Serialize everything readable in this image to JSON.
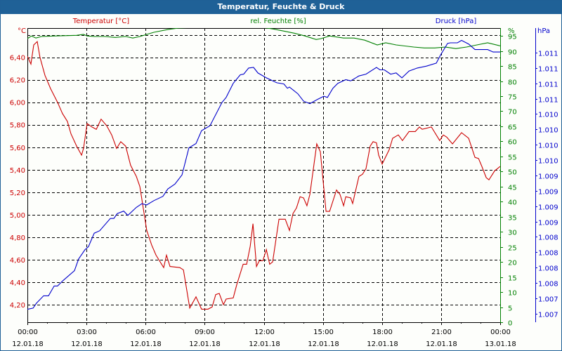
{
  "window": {
    "title": "Temperatur, Feuchte & Druck"
  },
  "chart_data": {
    "type": "line",
    "title": "Temperatur, Feuchte & Druck",
    "colors": {
      "temperature": "#cc0000",
      "humidity": "#008000",
      "pressure": "#0000cc",
      "grid": "#000000"
    },
    "x_axis": {
      "unit": "hours since 12.01.18 00:00",
      "range": [
        0,
        24
      ],
      "ticks": [
        {
          "h": 0,
          "time": "00:00",
          "date": "12.01.18"
        },
        {
          "h": 3,
          "time": "03:00",
          "date": "12.01.18"
        },
        {
          "h": 6,
          "time": "06:00",
          "date": "12.01.18"
        },
        {
          "h": 9,
          "time": "09:00",
          "date": "12.01.18"
        },
        {
          "h": 12,
          "time": "12:00",
          "date": "12.01.18"
        },
        {
          "h": 15,
          "time": "15:00",
          "date": "12.01.18"
        },
        {
          "h": 18,
          "time": "18:00",
          "date": "12.01.18"
        },
        {
          "h": 21,
          "time": "21:00",
          "date": "12.01.18"
        },
        {
          "h": 24,
          "time": "00:00",
          "date": "13.01.18"
        }
      ]
    },
    "y_axes": {
      "temperature": {
        "legend": "Temperatur [°C]",
        "unit": "°C",
        "range": [
          4.044,
          6.66
        ],
        "ticks": [
          {
            "v": 4.2,
            "label": "4,20"
          },
          {
            "v": 4.4,
            "label": "4,40"
          },
          {
            "v": 4.6,
            "label": "4,60"
          },
          {
            "v": 4.8,
            "label": "4,80"
          },
          {
            "v": 5.0,
            "label": "5,00"
          },
          {
            "v": 5.2,
            "label": "5,20"
          },
          {
            "v": 5.4,
            "label": "5,40"
          },
          {
            "v": 5.6,
            "label": "5,60"
          },
          {
            "v": 5.8,
            "label": "5,80"
          },
          {
            "v": 6.0,
            "label": "6,00"
          },
          {
            "v": 6.2,
            "label": "6,20"
          },
          {
            "v": 6.4,
            "label": "6,40"
          }
        ],
        "gridlines": [
          4.2,
          4.4,
          4.6,
          4.8,
          5.0,
          5.2,
          5.4,
          5.6,
          5.8,
          6.0,
          6.2,
          6.4,
          6.6
        ]
      },
      "humidity": {
        "legend": "rel. Feuchte [%]",
        "unit": "%",
        "range": [
          0,
          97.6
        ],
        "ticks": [
          {
            "v": 0,
            "label": "0"
          },
          {
            "v": 5,
            "label": "5"
          },
          {
            "v": 10,
            "label": "10"
          },
          {
            "v": 15,
            "label": "15"
          },
          {
            "v": 20,
            "label": "20"
          },
          {
            "v": 25,
            "label": "25"
          },
          {
            "v": 30,
            "label": "30"
          },
          {
            "v": 35,
            "label": "35"
          },
          {
            "v": 40,
            "label": "40"
          },
          {
            "v": 45,
            "label": "45"
          },
          {
            "v": 50,
            "label": "50"
          },
          {
            "v": 55,
            "label": "55"
          },
          {
            "v": 60,
            "label": "60"
          },
          {
            "v": 65,
            "label": "65"
          },
          {
            "v": 70,
            "label": "70"
          },
          {
            "v": 75,
            "label": "75"
          },
          {
            "v": 80,
            "label": "80"
          },
          {
            "v": 85,
            "label": "85"
          },
          {
            "v": 90,
            "label": "90"
          },
          {
            "v": 95,
            "label": "95"
          }
        ]
      },
      "pressure": {
        "legend": "Druck [hPa]",
        "unit": "hPa",
        "range": [
          1006.86,
          1011.65
        ],
        "ticks": [
          {
            "v": 1007.0,
            "label": "1.007"
          },
          {
            "v": 1007.25,
            "label": "1.007"
          },
          {
            "v": 1007.5,
            "label": "1.008"
          },
          {
            "v": 1007.75,
            "label": "1.008"
          },
          {
            "v": 1008.0,
            "label": "1.008"
          },
          {
            "v": 1008.25,
            "label": "1.008"
          },
          {
            "v": 1008.5,
            "label": "1.009"
          },
          {
            "v": 1008.75,
            "label": "1.009"
          },
          {
            "v": 1009.0,
            "label": "1.009"
          },
          {
            "v": 1009.25,
            "label": "1.009"
          },
          {
            "v": 1009.5,
            "label": "1.010"
          },
          {
            "v": 1009.75,
            "label": "1.010"
          },
          {
            "v": 1010.0,
            "label": "1.010"
          },
          {
            "v": 1010.25,
            "label": "1.010"
          },
          {
            "v": 1010.5,
            "label": "1.011"
          },
          {
            "v": 1010.75,
            "label": "1.011"
          },
          {
            "v": 1011.0,
            "label": "1.011"
          },
          {
            "v": 1011.25,
            "label": "1.011"
          }
        ]
      }
    },
    "series": [
      {
        "name": "Temperatur [°C]",
        "axis": "temperature",
        "x": [
          0,
          0.18,
          0.32,
          0.5,
          0.64,
          0.89,
          1.18,
          1.53,
          1.78,
          2.03,
          2.21,
          2.5,
          2.75,
          2.85,
          3.03,
          3.28,
          3.5,
          3.74,
          4.03,
          4.28,
          4.53,
          4.74,
          4.99,
          5.24,
          5.53,
          5.71,
          6.06,
          6.31,
          6.53,
          6.92,
          7.06,
          7.24,
          7.74,
          7.92,
          8.24,
          8.56,
          8.84,
          9.17,
          9.38,
          9.56,
          9.74,
          9.95,
          10.09,
          10.45,
          10.63,
          10.95,
          11.13,
          11.31,
          11.45,
          11.63,
          11.77,
          11.95,
          12.13,
          12.3,
          12.45,
          12.77,
          13.09,
          13.3,
          13.48,
          13.66,
          13.84,
          14.02,
          14.19,
          14.34,
          14.69,
          14.87,
          15.16,
          15.34,
          15.69,
          15.87,
          16.05,
          16.16,
          16.41,
          16.51,
          16.83,
          17.01,
          17.19,
          17.4,
          17.55,
          17.72,
          17.83,
          18.01,
          18.37,
          18.54,
          18.83,
          19.04,
          19.37,
          19.69,
          19.9,
          20.04,
          20.51,
          20.93,
          21.11,
          21.29,
          21.58,
          22.04,
          22.4,
          22.72,
          22.9,
          23.07,
          23.29,
          23.43,
          23.72,
          24.0
        ],
        "y": [
          6.41,
          6.34,
          6.51,
          6.54,
          6.4,
          6.24,
          6.12,
          6.0,
          5.9,
          5.83,
          5.72,
          5.61,
          5.53,
          5.59,
          5.81,
          5.78,
          5.76,
          5.85,
          5.79,
          5.71,
          5.59,
          5.65,
          5.61,
          5.44,
          5.34,
          5.25,
          4.86,
          4.73,
          4.64,
          4.53,
          4.64,
          4.54,
          4.53,
          4.51,
          4.17,
          4.27,
          4.16,
          4.16,
          4.18,
          4.29,
          4.3,
          4.2,
          4.25,
          4.26,
          4.38,
          4.56,
          4.56,
          4.72,
          4.92,
          4.54,
          4.59,
          4.59,
          4.69,
          4.56,
          4.58,
          4.96,
          4.96,
          4.86,
          5.01,
          5.06,
          5.16,
          5.15,
          5.08,
          5.18,
          5.63,
          5.56,
          5.03,
          5.03,
          5.22,
          5.18,
          5.08,
          5.16,
          5.15,
          5.1,
          5.34,
          5.36,
          5.41,
          5.61,
          5.65,
          5.64,
          5.53,
          5.45,
          5.58,
          5.68,
          5.71,
          5.66,
          5.74,
          5.74,
          5.78,
          5.76,
          5.78,
          5.66,
          5.71,
          5.69,
          5.63,
          5.73,
          5.68,
          5.51,
          5.5,
          5.43,
          5.33,
          5.31,
          5.39,
          5.43
        ]
      },
      {
        "name": "rel. Feuchte [%]",
        "axis": "humidity",
        "x": [
          0,
          0.21,
          0.43,
          0.71,
          1.43,
          2.5,
          2.85,
          3.03,
          3.39,
          3.92,
          4.46,
          4.99,
          5.35,
          5.71,
          6.06,
          6.42,
          7.13,
          7.67,
          8.38,
          9.27,
          10.34,
          11.23,
          11.41,
          11.95,
          12.48,
          13.02,
          13.55,
          14.09,
          14.66,
          14.91,
          15.34,
          16.05,
          16.58,
          17.12,
          17.76,
          18.19,
          18.72,
          19.61,
          20.15,
          20.68,
          21.22,
          21.75,
          22.29,
          22.82,
          23.36,
          24.0
        ],
        "y": [
          94.1,
          95.0,
          94.3,
          94.8,
          95.0,
          95.2,
          95.5,
          95.0,
          94.8,
          94.8,
          94.5,
          94.8,
          94.3,
          94.8,
          95.5,
          96.2,
          97.1,
          97.6,
          97.8,
          98.5,
          98.7,
          97.8,
          98.0,
          97.8,
          97.3,
          96.6,
          95.9,
          95.0,
          93.8,
          94.1,
          95.0,
          94.3,
          94.3,
          93.6,
          92.0,
          92.7,
          92.0,
          91.3,
          91.0,
          91.0,
          91.3,
          90.8,
          91.3,
          92.0,
          92.7,
          91.7
        ]
      },
      {
        "name": "Druck [hPa]",
        "axis": "pressure",
        "x": [
          0,
          0.29,
          0.46,
          0.82,
          1.07,
          1.36,
          1.53,
          1.78,
          2.39,
          2.6,
          2.92,
          3.1,
          3.39,
          3.67,
          4.21,
          4.39,
          4.56,
          4.89,
          5.1,
          5.53,
          5.81,
          6.06,
          6.42,
          6.88,
          7.13,
          7.49,
          7.85,
          8.2,
          8.56,
          8.84,
          9.27,
          9.88,
          10.09,
          10.45,
          10.81,
          10.98,
          11.23,
          11.48,
          11.7,
          12.13,
          12.66,
          13.02,
          13.2,
          13.3,
          13.73,
          14.02,
          14.34,
          14.73,
          15.05,
          15.23,
          15.51,
          15.76,
          16.16,
          16.41,
          16.83,
          17.19,
          17.72,
          17.9,
          18.12,
          18.44,
          18.72,
          19.01,
          19.37,
          19.79,
          20.26,
          20.76,
          20.97,
          21.33,
          21.47,
          21.83,
          22.04,
          22.4,
          22.72,
          23.0,
          23.36,
          23.64,
          24.0
        ],
        "y": [
          1007.07,
          1007.09,
          1007.17,
          1007.29,
          1007.29,
          1007.45,
          1007.45,
          1007.53,
          1007.7,
          1007.89,
          1008.04,
          1008.09,
          1008.31,
          1008.35,
          1008.55,
          1008.55,
          1008.63,
          1008.67,
          1008.6,
          1008.73,
          1008.79,
          1008.77,
          1008.84,
          1008.91,
          1009.03,
          1009.11,
          1009.26,
          1009.7,
          1009.77,
          1009.98,
          1010.06,
          1010.44,
          1010.52,
          1010.75,
          1010.89,
          1010.9,
          1011.0,
          1011.01,
          1010.92,
          1010.84,
          1010.76,
          1010.74,
          1010.67,
          1010.69,
          1010.58,
          1010.46,
          1010.42,
          1010.49,
          1010.54,
          1010.52,
          1010.67,
          1010.75,
          1010.81,
          1010.79,
          1010.87,
          1010.9,
          1011.01,
          1010.97,
          1010.97,
          1010.9,
          1010.92,
          1010.84,
          1010.95,
          1011.0,
          1011.03,
          1011.08,
          1011.21,
          1011.4,
          1011.41,
          1011.41,
          1011.45,
          1011.39,
          1011.3,
          1011.3,
          1011.3,
          1011.26,
          1011.26
        ]
      }
    ]
  }
}
